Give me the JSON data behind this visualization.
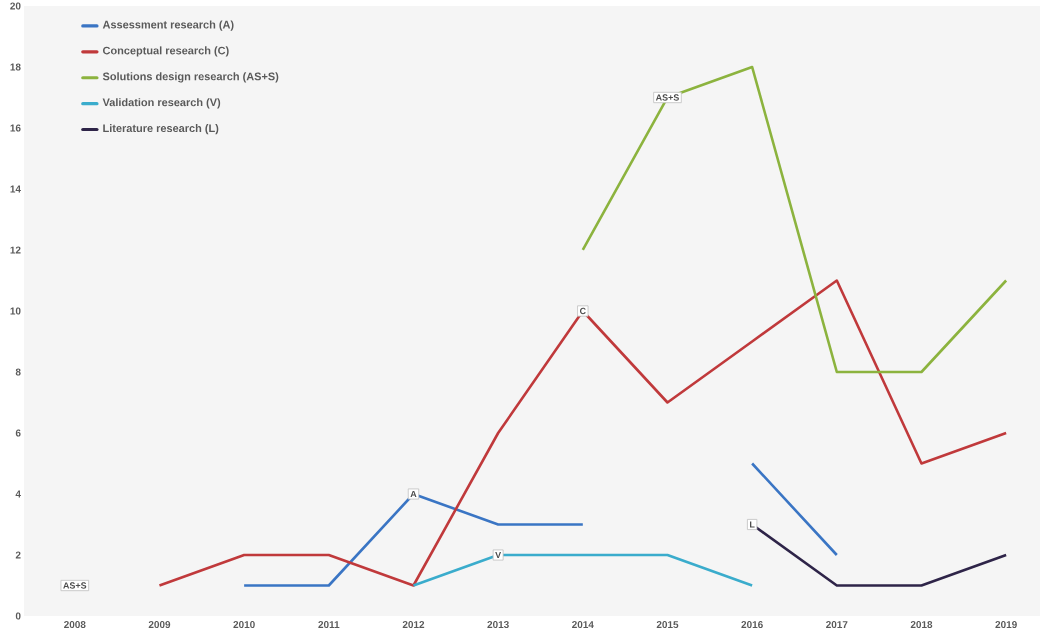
{
  "chart_data": {
    "type": "line",
    "categories": [
      "2008",
      "2009",
      "2010",
      "2011",
      "2012",
      "2013",
      "2014",
      "2015",
      "2016",
      "2017",
      "2018",
      "2019"
    ],
    "series": [
      {
        "name": "Assessment research (A)",
        "color": "#3a75c4",
        "values": [
          null,
          null,
          1,
          1,
          4,
          3,
          3,
          null,
          5,
          2,
          null,
          null
        ]
      },
      {
        "name": "Conceptual research (C)",
        "color": "#c0393b",
        "values": [
          null,
          1,
          2,
          2,
          1,
          6,
          10,
          7,
          9,
          11,
          5,
          6
        ]
      },
      {
        "name": "Solutions design research (AS+S)",
        "color": "#8cb33e",
        "values": [
          null,
          null,
          null,
          null,
          null,
          null,
          12,
          17,
          18,
          8,
          8,
          11
        ]
      },
      {
        "name": "Validation research (V)",
        "color": "#3aaccc",
        "values": [
          null,
          null,
          null,
          null,
          1,
          2,
          2,
          2,
          1,
          null,
          null,
          null
        ]
      },
      {
        "name": "Literature research (L)",
        "color": "#2e2448",
        "values": [
          null,
          null,
          null,
          null,
          null,
          null,
          null,
          null,
          3,
          1,
          1,
          2
        ]
      }
    ],
    "annotations": [
      {
        "text": "AS+S",
        "x": "2008",
        "y": 1
      },
      {
        "text": "A",
        "x": "2012",
        "y": 4
      },
      {
        "text": "V",
        "x": "2013",
        "y": 2
      },
      {
        "text": "C",
        "x": "2014",
        "y": 10
      },
      {
        "text": "AS+S",
        "x": "2015",
        "y": 17
      },
      {
        "text": "L",
        "x": "2016",
        "y": 3
      }
    ],
    "ylim": [
      0,
      20
    ],
    "yticks": [
      0,
      2,
      4,
      6,
      8,
      10,
      12,
      14,
      16,
      18,
      20
    ],
    "grid": false,
    "legend": "top left",
    "marker": "none",
    "line_style": "solid"
  }
}
